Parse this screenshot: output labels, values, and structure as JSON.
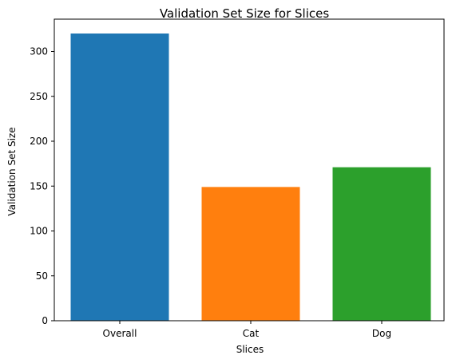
{
  "chart_data": {
    "type": "bar",
    "title": "Validation Set Size for Slices",
    "xlabel": "Slices",
    "ylabel": "Validation Set Size",
    "categories": [
      "Overall",
      "Cat",
      "Dog"
    ],
    "values": [
      320,
      149,
      171
    ],
    "colors": [
      "#1f77b4",
      "#ff7f0e",
      "#2ca02c"
    ],
    "ylim": [
      0,
      336
    ],
    "yticks": [
      0,
      50,
      100,
      150,
      200,
      250,
      300
    ],
    "grid": false
  }
}
